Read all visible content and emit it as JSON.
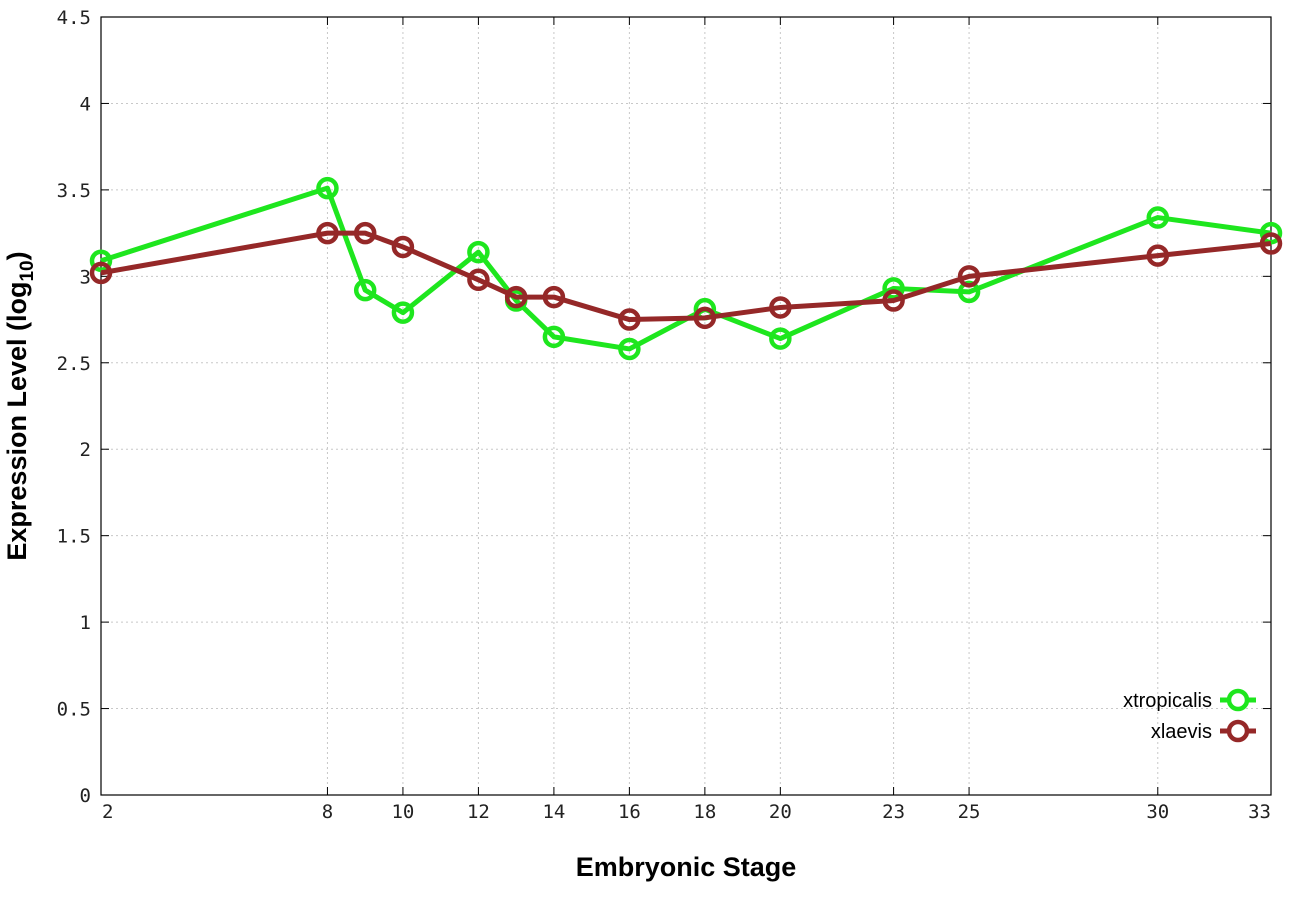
{
  "chart_data": {
    "type": "line",
    "title": "",
    "xlabel": "Embryonic Stage",
    "ylabel_main": "Expression Level (log",
    "ylabel_sub": "10",
    "ylabel_close": ")",
    "xlim": [
      2,
      33
    ],
    "ylim": [
      0,
      4.5
    ],
    "x_ticks": [
      2,
      8,
      10,
      12,
      14,
      16,
      18,
      20,
      23,
      25,
      30,
      33
    ],
    "y_ticks": [
      0,
      0.5,
      1,
      1.5,
      2,
      2.5,
      3,
      3.5,
      4,
      4.5
    ],
    "x_tick_labels": [
      "2",
      "8",
      "10",
      "12",
      "14",
      "16",
      "18",
      "20",
      "23",
      "25",
      "30",
      "33"
    ],
    "y_tick_labels": [
      "0",
      "0.5",
      "1",
      "1.5",
      "2",
      "2.5",
      "3",
      "3.5",
      "4",
      "4.5"
    ],
    "grid": true,
    "legend_position": "bottom-right",
    "series": [
      {
        "name": "xtropicalis",
        "color": "#1ee61e",
        "points": [
          {
            "x": 2,
            "y": 3.09
          },
          {
            "x": 8,
            "y": 3.51
          },
          {
            "x": 9,
            "y": 2.92
          },
          {
            "x": 10,
            "y": 2.79
          },
          {
            "x": 12,
            "y": 3.14
          },
          {
            "x": 13,
            "y": 2.86
          },
          {
            "x": 14,
            "y": 2.65
          },
          {
            "x": 16,
            "y": 2.58
          },
          {
            "x": 18,
            "y": 2.81
          },
          {
            "x": 20,
            "y": 2.64
          },
          {
            "x": 23,
            "y": 2.93
          },
          {
            "x": 25,
            "y": 2.91
          },
          {
            "x": 30,
            "y": 3.34
          },
          {
            "x": 33,
            "y": 3.25
          }
        ]
      },
      {
        "name": "xlaevis",
        "color": "#952828",
        "points": [
          {
            "x": 2,
            "y": 3.02
          },
          {
            "x": 8,
            "y": 3.25
          },
          {
            "x": 9,
            "y": 3.25
          },
          {
            "x": 10,
            "y": 3.17
          },
          {
            "x": 12,
            "y": 2.98
          },
          {
            "x": 13,
            "y": 2.88
          },
          {
            "x": 14,
            "y": 2.88
          },
          {
            "x": 16,
            "y": 2.75
          },
          {
            "x": 18,
            "y": 2.76
          },
          {
            "x": 20,
            "y": 2.82
          },
          {
            "x": 23,
            "y": 2.86
          },
          {
            "x": 25,
            "y": 3.0
          },
          {
            "x": 30,
            "y": 3.12
          },
          {
            "x": 33,
            "y": 3.19
          }
        ]
      }
    ]
  }
}
